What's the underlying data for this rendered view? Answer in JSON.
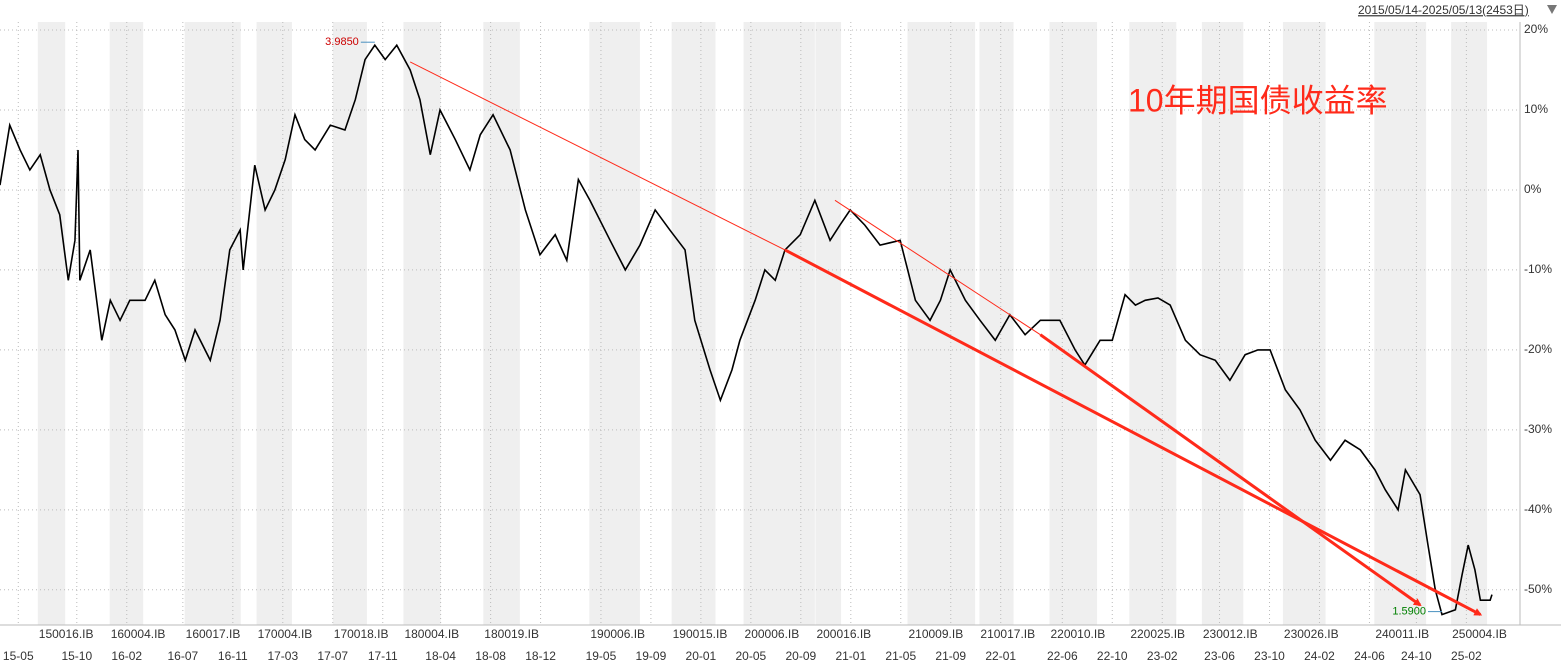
{
  "chart_data": {
    "type": "line",
    "range_label": "2015/05/14-2025/05/13(2453日)",
    "annotation": "10年期国债收益率",
    "xlim": [
      0,
      2494
    ],
    "ylim": [
      -54.4,
      21
    ],
    "yticks": [
      {
        "value": 20,
        "label": "20%"
      },
      {
        "value": 10,
        "label": "10%"
      },
      {
        "value": 0,
        "label": "0%"
      },
      {
        "value": -10,
        "label": "-10%"
      },
      {
        "value": -20,
        "label": "-20%"
      },
      {
        "value": -30,
        "label": "-30%"
      },
      {
        "value": -40,
        "label": "-40%"
      },
      {
        "value": -50,
        "label": "-50%"
      }
    ],
    "xticks": [
      {
        "value": 30,
        "label": "15-05"
      },
      {
        "value": 126,
        "label": "15-10"
      },
      {
        "value": 208,
        "label": "16-02"
      },
      {
        "value": 300,
        "label": "16-07"
      },
      {
        "value": 382,
        "label": "16-11"
      },
      {
        "value": 464,
        "label": "17-03"
      },
      {
        "value": 546,
        "label": "17-07"
      },
      {
        "value": 628,
        "label": "17-11"
      },
      {
        "value": 723,
        "label": "18-04"
      },
      {
        "value": 805,
        "label": "18-08"
      },
      {
        "value": 887,
        "label": "18-12"
      },
      {
        "value": 986,
        "label": "19-05"
      },
      {
        "value": 1068,
        "label": "19-09"
      },
      {
        "value": 1150,
        "label": "20-01"
      },
      {
        "value": 1232,
        "label": "20-05"
      },
      {
        "value": 1314,
        "label": "20-09"
      },
      {
        "value": 1396,
        "label": "21-01"
      },
      {
        "value": 1478,
        "label": "21-05"
      },
      {
        "value": 1560,
        "label": "21-09"
      },
      {
        "value": 1642,
        "label": "22-01"
      },
      {
        "value": 1743,
        "label": "22-06"
      },
      {
        "value": 1825,
        "label": "22-10"
      },
      {
        "value": 1907,
        "label": "23-02"
      },
      {
        "value": 2001,
        "label": "23-06"
      },
      {
        "value": 2083,
        "label": "23-10"
      },
      {
        "value": 2165,
        "label": "24-02"
      },
      {
        "value": 2247,
        "label": "24-06"
      },
      {
        "value": 2324,
        "label": "24-10"
      },
      {
        "value": 2406,
        "label": "25-02"
      }
    ],
    "contracts": [
      {
        "label": "150016.IB",
        "start": 62,
        "end": 107
      },
      {
        "label": "160004.IB",
        "start": 180,
        "end": 235
      },
      {
        "label": "160017.IB",
        "start": 303,
        "end": 395
      },
      {
        "label": "170004.IB",
        "start": 421,
        "end": 479
      },
      {
        "label": "170018.IB",
        "start": 546,
        "end": 602
      },
      {
        "label": "180004.IB",
        "start": 662,
        "end": 723
      },
      {
        "label": "180019.IB",
        "start": 793,
        "end": 853
      },
      {
        "label": "190006.IB",
        "start": 967,
        "end": 1050
      },
      {
        "label": "190015.IB",
        "start": 1102,
        "end": 1174
      },
      {
        "label": "200006.IB",
        "start": 1220,
        "end": 1337
      },
      {
        "label": "200016.IB",
        "start": 1338,
        "end": 1380
      },
      {
        "label": "210009.IB",
        "start": 1489,
        "end": 1600
      },
      {
        "label": "210017.IB",
        "start": 1607,
        "end": 1663
      },
      {
        "label": "220010.IB",
        "start": 1722,
        "end": 1800
      },
      {
        "label": "220025.IB",
        "start": 1853,
        "end": 1930
      },
      {
        "label": "230012.IB",
        "start": 1972,
        "end": 2040
      },
      {
        "label": "230026.IB",
        "start": 2105,
        "end": 2175
      },
      {
        "label": "240011.IB",
        "start": 2255,
        "end": 2340
      },
      {
        "label": "250004.IB",
        "start": 2381,
        "end": 2440
      }
    ],
    "series": [
      {
        "color": "#000000",
        "x": [
          0,
          16,
          33,
          49,
          66,
          82,
          98,
          112,
          123,
          128,
          131,
          148,
          167,
          181,
          197,
          213,
          238,
          254,
          271,
          287,
          304,
          320,
          345,
          361,
          377,
          394,
          399,
          418,
          435,
          451,
          468,
          484,
          500,
          517,
          542,
          566,
          583,
          599,
          615,
          632,
          651,
          673,
          689,
          706,
          722,
          747,
          771,
          788,
          809,
          837,
          862,
          886,
          911,
          930,
          949,
          968,
          1001,
          1026,
          1050,
          1075,
          1099,
          1124,
          1140,
          1165,
          1182,
          1201,
          1214,
          1239,
          1255,
          1272,
          1288,
          1313,
          1337,
          1362,
          1378,
          1395,
          1419,
          1444,
          1477,
          1502,
          1526,
          1543,
          1559,
          1584,
          1608,
          1633,
          1657,
          1682,
          1707,
          1739,
          1764,
          1780,
          1805,
          1825,
          1846,
          1863,
          1879,
          1900,
          1920,
          1945,
          1969,
          1994,
          2018,
          2043,
          2064,
          2084,
          2109,
          2133,
          2158,
          2183,
          2207,
          2232,
          2256,
          2273,
          2294,
          2306,
          2330,
          2343,
          2355,
          2366,
          2388,
          2399,
          2409,
          2420,
          2429,
          2445,
          2448
        ],
        "values": [
          0.6,
          8.1,
          5,
          2.5,
          4.4,
          0,
          -3.1,
          -11.3,
          -6.3,
          5,
          -11.3,
          -7.5,
          -18.8,
          -13.8,
          -16.3,
          -13.8,
          -13.8,
          -11.3,
          -15.6,
          -17.5,
          -21.3,
          -17.5,
          -21.3,
          -16.3,
          -7.5,
          -5,
          -10,
          3.1,
          -2.5,
          0,
          3.8,
          9.4,
          6.3,
          5,
          8.1,
          7.5,
          11.3,
          16.3,
          18.1,
          16.3,
          18.1,
          15,
          11.3,
          4.4,
          10,
          6.3,
          2.5,
          6.9,
          9.4,
          5,
          -2.5,
          -8.1,
          -5.6,
          -8.8,
          1.3,
          -1.3,
          -6.3,
          -10,
          -6.9,
          -2.5,
          -5,
          -7.5,
          -16.3,
          -22.5,
          -26.3,
          -22.5,
          -18.8,
          -13.8,
          -10,
          -11.3,
          -7.5,
          -5.6,
          -1.3,
          -6.3,
          -4.4,
          -2.5,
          -4.4,
          -6.9,
          -6.3,
          -13.8,
          -16.3,
          -13.8,
          -10,
          -13.8,
          -16.3,
          -18.8,
          -15.6,
          -18.1,
          -16.3,
          -16.3,
          -20,
          -21.9,
          -18.8,
          -18.8,
          -13.1,
          -14.4,
          -13.8,
          -13.5,
          -14.4,
          -18.8,
          -20.6,
          -21.3,
          -23.8,
          -20.6,
          -20,
          -20,
          -25,
          -27.5,
          -31.3,
          -33.8,
          -31.3,
          -32.5,
          -35,
          -37.5,
          -40,
          -35,
          -38.1,
          -44.4,
          -50,
          -53.1,
          -52.5,
          -48.1,
          -44.4,
          -47.5,
          -51.3,
          -51.3,
          -50.6
        ]
      }
    ],
    "extremes": [
      {
        "label": "3.9850",
        "x": 615,
        "y": 18.1,
        "color": "#cc0000"
      },
      {
        "label": "1.5900",
        "x": 2366,
        "y": -53.1,
        "color": "#008000"
      }
    ],
    "arrows": [
      {
        "x": [
          673,
          1288,
          2429
        ],
        "y": [
          16,
          -7.5,
          -53.1
        ]
      },
      {
        "x": [
          1370,
          1707,
          2330
        ],
        "y": [
          -1.3,
          -18.1,
          -51.9
        ]
      }
    ],
    "arrow_color": "#ff2a1a"
  }
}
